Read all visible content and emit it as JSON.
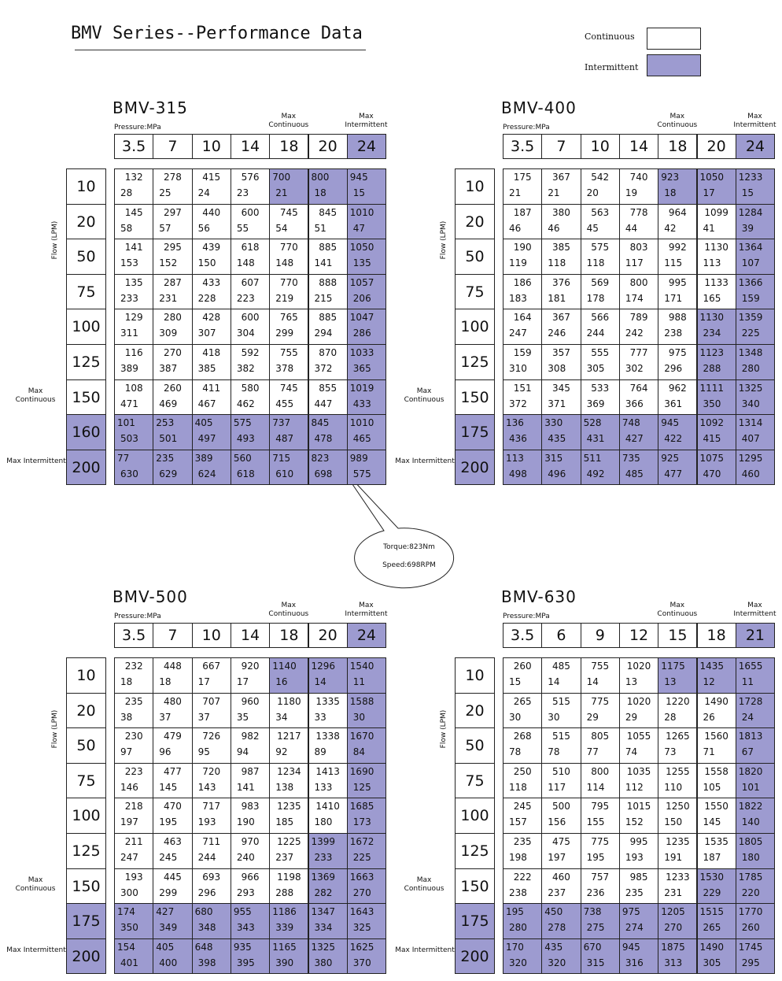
{
  "header": {
    "title": "BMV Series--Performance Data",
    "legend": [
      "Continuous",
      "Intermittent"
    ]
  },
  "callout": [
    "Torque:823Nm",
    "Speed:698RPM"
  ],
  "blocks": [
    {
      "model": "BMV-315",
      "pressure_label": "Pressure:MPa",
      "max_continuous": "Max Continuous",
      "max_intermittent": "Max Intermittent",
      "flow_label": "Flow (LPM)",
      "pressures": [
        3.5,
        7,
        10,
        14,
        18,
        20,
        24
      ],
      "flows": [
        10,
        20,
        50,
        75,
        100,
        125,
        150,
        160,
        200
      ],
      "cells": [
        [
          [
            132,
            28
          ],
          [
            278,
            25
          ],
          [
            415,
            24
          ],
          [
            576,
            23
          ],
          [
            700,
            21
          ],
          [
            800,
            18
          ],
          [
            945,
            15
          ]
        ],
        [
          [
            145,
            58
          ],
          [
            297,
            57
          ],
          [
            440,
            56
          ],
          [
            600,
            55
          ],
          [
            745,
            54
          ],
          [
            845,
            51
          ],
          [
            1010,
            47
          ]
        ],
        [
          [
            141,
            153
          ],
          [
            295,
            152
          ],
          [
            439,
            150
          ],
          [
            618,
            148
          ],
          [
            770,
            148
          ],
          [
            885,
            141
          ],
          [
            1050,
            135
          ]
        ],
        [
          [
            135,
            233
          ],
          [
            287,
            231
          ],
          [
            433,
            228
          ],
          [
            607,
            223
          ],
          [
            770,
            219
          ],
          [
            888,
            215
          ],
          [
            1057,
            206
          ]
        ],
        [
          [
            129,
            311
          ],
          [
            280,
            309
          ],
          [
            428,
            307
          ],
          [
            600,
            304
          ],
          [
            765,
            299
          ],
          [
            885,
            294
          ],
          [
            1047,
            286
          ]
        ],
        [
          [
            116,
            389
          ],
          [
            270,
            387
          ],
          [
            418,
            385
          ],
          [
            592,
            382
          ],
          [
            755,
            378
          ],
          [
            870,
            372
          ],
          [
            1033,
            365
          ]
        ],
        [
          [
            108,
            471
          ],
          [
            260,
            469
          ],
          [
            411,
            467
          ],
          [
            580,
            462
          ],
          [
            745,
            455
          ],
          [
            855,
            447
          ],
          [
            1019,
            433
          ]
        ],
        [
          [
            101,
            503
          ],
          [
            253,
            501
          ],
          [
            405,
            497
          ],
          [
            575,
            493
          ],
          [
            737,
            487
          ],
          [
            845,
            478
          ],
          [
            1010,
            465
          ]
        ],
        [
          [
            77,
            630
          ],
          [
            235,
            629
          ],
          [
            389,
            624
          ],
          [
            560,
            618
          ],
          [
            715,
            610
          ],
          [
            823,
            698
          ],
          [
            989,
            575
          ]
        ]
      ]
    },
    {
      "model": "BMV-400",
      "pressure_label": "Pressure:MPa",
      "max_continuous": "Max Continuous",
      "max_intermittent": "Max Intermittent",
      "flow_label": "Flow (LPM)",
      "pressures": [
        3.5,
        7,
        10,
        14,
        18,
        20,
        24
      ],
      "flows": [
        10,
        20,
        50,
        75,
        100,
        125,
        150,
        175,
        200
      ],
      "cells": [
        [
          [
            175,
            21
          ],
          [
            367,
            21
          ],
          [
            542,
            20
          ],
          [
            740,
            19
          ],
          [
            923,
            18
          ],
          [
            1050,
            17
          ],
          [
            1233,
            15
          ]
        ],
        [
          [
            187,
            46
          ],
          [
            380,
            46
          ],
          [
            563,
            45
          ],
          [
            778,
            44
          ],
          [
            964,
            42
          ],
          [
            1099,
            41
          ],
          [
            1284,
            39
          ]
        ],
        [
          [
            190,
            119
          ],
          [
            385,
            118
          ],
          [
            575,
            118
          ],
          [
            803,
            117
          ],
          [
            992,
            115
          ],
          [
            1130,
            113
          ],
          [
            1364,
            107
          ]
        ],
        [
          [
            186,
            183
          ],
          [
            376,
            181
          ],
          [
            569,
            178
          ],
          [
            800,
            174
          ],
          [
            995,
            171
          ],
          [
            1133,
            165
          ],
          [
            1366,
            159
          ]
        ],
        [
          [
            164,
            247
          ],
          [
            367,
            246
          ],
          [
            566,
            244
          ],
          [
            789,
            242
          ],
          [
            988,
            238
          ],
          [
            1130,
            234
          ],
          [
            1359,
            225
          ]
        ],
        [
          [
            159,
            310
          ],
          [
            357,
            308
          ],
          [
            555,
            305
          ],
          [
            777,
            302
          ],
          [
            975,
            296
          ],
          [
            1123,
            288
          ],
          [
            1348,
            280
          ]
        ],
        [
          [
            151,
            372
          ],
          [
            345,
            371
          ],
          [
            533,
            369
          ],
          [
            764,
            366
          ],
          [
            962,
            361
          ],
          [
            1111,
            350
          ],
          [
            1325,
            340
          ]
        ],
        [
          [
            136,
            436
          ],
          [
            330,
            435
          ],
          [
            528,
            431
          ],
          [
            748,
            427
          ],
          [
            945,
            422
          ],
          [
            1092,
            415
          ],
          [
            1314,
            407
          ]
        ],
        [
          [
            113,
            498
          ],
          [
            315,
            496
          ],
          [
            511,
            492
          ],
          [
            735,
            485
          ],
          [
            925,
            477
          ],
          [
            1075,
            470
          ],
          [
            1295,
            460
          ]
        ]
      ]
    },
    {
      "model": "BMV-500",
      "pressure_label": "Pressure:MPa",
      "max_continuous": "Max Continuous",
      "max_intermittent": "Max Intermittent",
      "flow_label": "Flow (LPM)",
      "pressures": [
        3.5,
        7,
        10,
        14,
        18,
        20,
        24
      ],
      "flows": [
        10,
        20,
        50,
        75,
        100,
        125,
        150,
        175,
        200
      ],
      "cells": [
        [
          [
            232,
            18
          ],
          [
            448,
            18
          ],
          [
            667,
            17
          ],
          [
            920,
            17
          ],
          [
            1140,
            16
          ],
          [
            1296,
            14
          ],
          [
            1540,
            11
          ]
        ],
        [
          [
            235,
            38
          ],
          [
            480,
            37
          ],
          [
            707,
            37
          ],
          [
            960,
            35
          ],
          [
            1180,
            34
          ],
          [
            1335,
            33
          ],
          [
            1588,
            30
          ]
        ],
        [
          [
            230,
            97
          ],
          [
            479,
            96
          ],
          [
            726,
            95
          ],
          [
            982,
            94
          ],
          [
            1217,
            92
          ],
          [
            1338,
            89
          ],
          [
            1670,
            84
          ]
        ],
        [
          [
            223,
            146
          ],
          [
            477,
            145
          ],
          [
            720,
            143
          ],
          [
            987,
            141
          ],
          [
            1234,
            138
          ],
          [
            1413,
            133
          ],
          [
            1690,
            125
          ]
        ],
        [
          [
            218,
            197
          ],
          [
            470,
            195
          ],
          [
            717,
            193
          ],
          [
            983,
            190
          ],
          [
            1235,
            185
          ],
          [
            1410,
            180
          ],
          [
            1685,
            173
          ]
        ],
        [
          [
            211,
            247
          ],
          [
            463,
            245
          ],
          [
            711,
            244
          ],
          [
            970,
            240
          ],
          [
            1225,
            237
          ],
          [
            1399,
            233
          ],
          [
            1672,
            225
          ]
        ],
        [
          [
            193,
            300
          ],
          [
            445,
            299
          ],
          [
            693,
            296
          ],
          [
            966,
            293
          ],
          [
            1198,
            288
          ],
          [
            1369,
            282
          ],
          [
            1663,
            270
          ]
        ],
        [
          [
            174,
            350
          ],
          [
            427,
            349
          ],
          [
            680,
            348
          ],
          [
            955,
            343
          ],
          [
            1186,
            339
          ],
          [
            1347,
            334
          ],
          [
            1643,
            325
          ]
        ],
        [
          [
            154,
            401
          ],
          [
            405,
            400
          ],
          [
            648,
            398
          ],
          [
            935,
            395
          ],
          [
            1165,
            390
          ],
          [
            1325,
            380
          ],
          [
            1625,
            370
          ]
        ]
      ]
    },
    {
      "model": "BMV-630",
      "pressure_label": "Pressure:MPa",
      "max_continuous": "Max Continuous",
      "max_intermittent": "Max Intermittent",
      "flow_label": "Flow (LPM)",
      "pressures": [
        3.5,
        6,
        9,
        12,
        15,
        18,
        21
      ],
      "flows": [
        10,
        20,
        50,
        75,
        100,
        125,
        150,
        175,
        200
      ],
      "cells": [
        [
          [
            260,
            15
          ],
          [
            485,
            14
          ],
          [
            755,
            14
          ],
          [
            1020,
            13
          ],
          [
            1175,
            13
          ],
          [
            1435,
            12
          ],
          [
            1655,
            11
          ]
        ],
        [
          [
            265,
            30
          ],
          [
            515,
            30
          ],
          [
            775,
            29
          ],
          [
            1020,
            29
          ],
          [
            1220,
            28
          ],
          [
            1490,
            26
          ],
          [
            1728,
            24
          ]
        ],
        [
          [
            268,
            78
          ],
          [
            515,
            78
          ],
          [
            805,
            77
          ],
          [
            1055,
            74
          ],
          [
            1265,
            73
          ],
          [
            1560,
            71
          ],
          [
            1813,
            67
          ]
        ],
        [
          [
            250,
            118
          ],
          [
            510,
            117
          ],
          [
            800,
            114
          ],
          [
            1035,
            112
          ],
          [
            1255,
            110
          ],
          [
            1558,
            105
          ],
          [
            1820,
            101
          ]
        ],
        [
          [
            245,
            157
          ],
          [
            500,
            156
          ],
          [
            795,
            155
          ],
          [
            1015,
            152
          ],
          [
            1250,
            150
          ],
          [
            1550,
            145
          ],
          [
            1822,
            140
          ]
        ],
        [
          [
            235,
            198
          ],
          [
            475,
            197
          ],
          [
            775,
            195
          ],
          [
            995,
            193
          ],
          [
            1235,
            191
          ],
          [
            1535,
            187
          ],
          [
            1805,
            180
          ]
        ],
        [
          [
            222,
            238
          ],
          [
            460,
            237
          ],
          [
            757,
            236
          ],
          [
            985,
            235
          ],
          [
            1233,
            231
          ],
          [
            1530,
            229
          ],
          [
            1785,
            220
          ]
        ],
        [
          [
            195,
            280
          ],
          [
            450,
            278
          ],
          [
            738,
            275
          ],
          [
            975,
            274
          ],
          [
            1205,
            270
          ],
          [
            1515,
            265
          ],
          [
            1770,
            260
          ]
        ],
        [
          [
            170,
            320
          ],
          [
            435,
            320
          ],
          [
            670,
            315
          ],
          [
            945,
            316
          ],
          [
            1875,
            313
          ],
          [
            1490,
            305
          ],
          [
            1745,
            295
          ]
        ]
      ]
    }
  ]
}
